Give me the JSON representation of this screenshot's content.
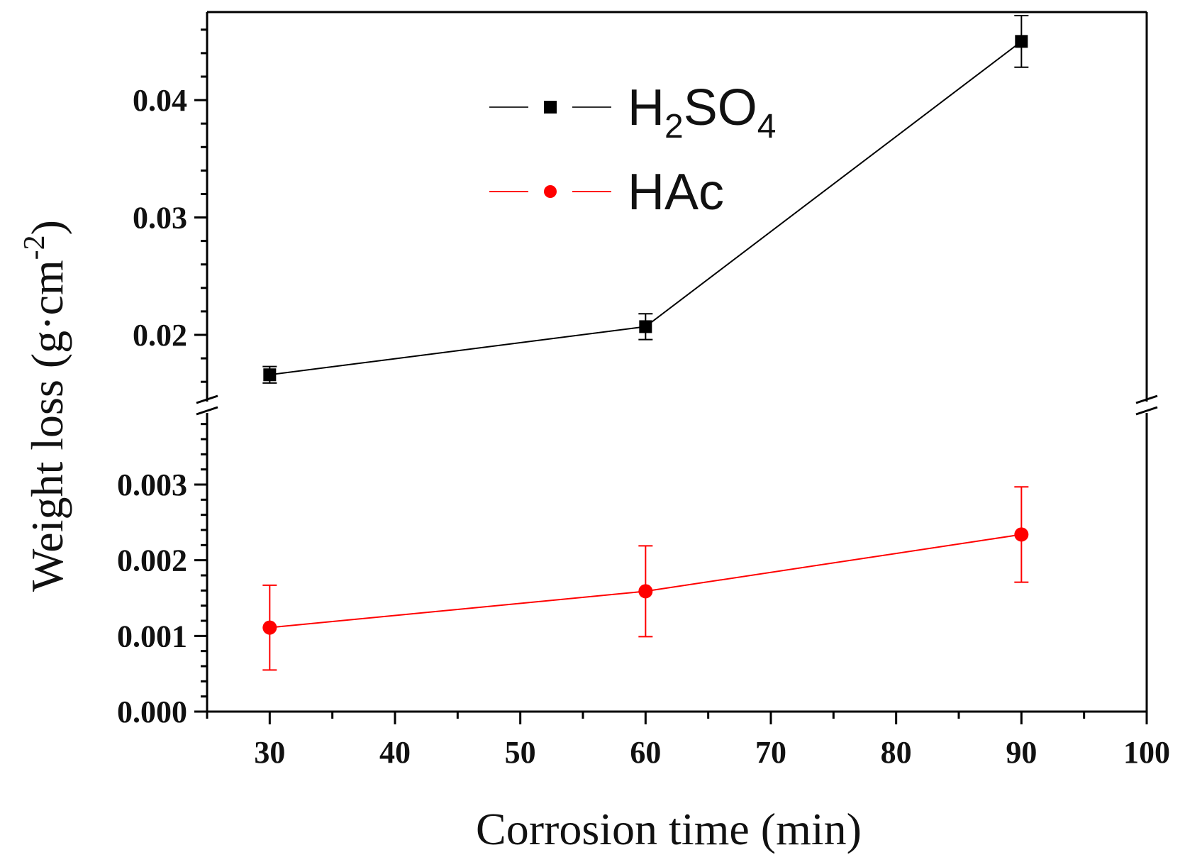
{
  "chart_data": {
    "type": "line",
    "title": "",
    "xlabel": "Corrosion time (min)",
    "ylabel_main": "Weight loss (g·cm",
    "ylabel_sup": "-2",
    "ylabel_close": ")",
    "xlim": [
      25,
      100
    ],
    "x_ticks": [
      "30",
      "40",
      "50",
      "60",
      "70",
      "80",
      "90",
      "100"
    ],
    "y_break": true,
    "y_upper": {
      "ylim": [
        0.0145,
        0.0475
      ],
      "tick_values": [
        0.02,
        0.03,
        0.04
      ],
      "tick_labels": [
        "0.02",
        "0.03",
        "0.04"
      ]
    },
    "y_lower": {
      "ylim": [
        0.0,
        0.0039
      ],
      "tick_values": [
        0.0,
        0.001,
        0.002,
        0.003
      ],
      "tick_labels": [
        "0.000",
        "0.001",
        "0.002",
        "0.003"
      ]
    },
    "grid": false,
    "legend_position": "top-center",
    "series": [
      {
        "name": "H2SO4",
        "legend_main": "H",
        "legend_sub1": "2",
        "legend_mid": "SO",
        "legend_sub2": "4",
        "color": "#000000",
        "marker": "square",
        "segment": "upper",
        "x": [
          30,
          60,
          90
        ],
        "values": [
          0.0166,
          0.0207,
          0.045
        ],
        "errors": [
          0.0007,
          0.0011,
          0.0022
        ]
      },
      {
        "name": "HAc",
        "legend_main": "HAc",
        "color": "#ff0000",
        "marker": "circle",
        "segment": "lower",
        "x": [
          30,
          60,
          90
        ],
        "values": [
          0.00111,
          0.00159,
          0.00234
        ],
        "errors": [
          0.00056,
          0.0006,
          0.00063
        ]
      }
    ]
  }
}
